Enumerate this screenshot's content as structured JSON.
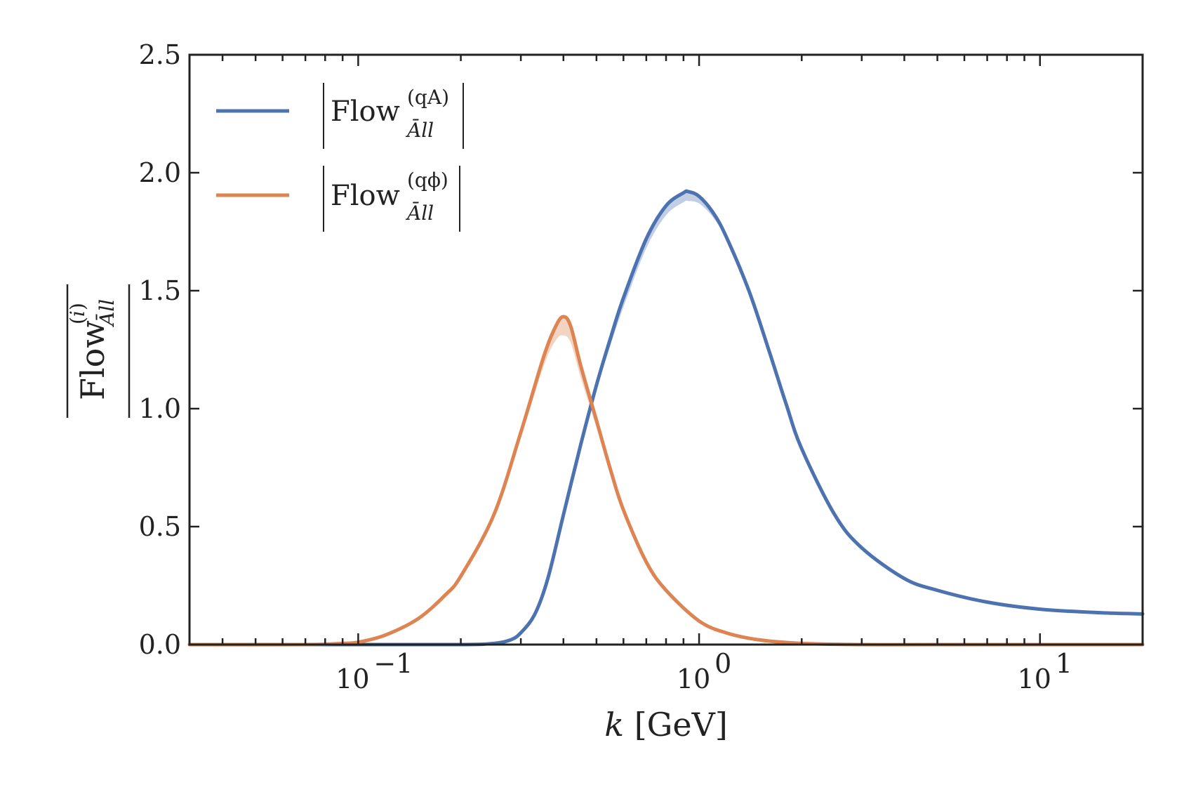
{
  "chart_data": {
    "type": "line",
    "title": "",
    "xlabel": "k [GeV]",
    "ylabel": "|Flow_{Āll}^{(i)}|",
    "xscale": "log",
    "xlim": [
      0.032,
      20
    ],
    "ylim": [
      0,
      2.5
    ],
    "yticks": [
      "0.0",
      "0.5",
      "1.0",
      "1.5",
      "2.0",
      "2.5"
    ],
    "xticks": [
      {
        "value": 0.1,
        "base": "10",
        "exp": "−1"
      },
      {
        "value": 1,
        "base": "10",
        "exp": "0"
      },
      {
        "value": 10,
        "base": "10",
        "exp": "1"
      }
    ],
    "legend_position": "top-left",
    "series": [
      {
        "name": "|Flow_{Āll}^{(qA)}|",
        "legend_main": "Flow",
        "legend_sup": "(qA)",
        "legend_sub": "Āll",
        "color": "#4c72b0",
        "band_color": "#4c72b0",
        "x": [
          0.032,
          0.1,
          0.2,
          0.25,
          0.28,
          0.3,
          0.33,
          0.36,
          0.4,
          0.45,
          0.5,
          0.55,
          0.6,
          0.7,
          0.8,
          0.9,
          0.93,
          1.0,
          1.1,
          1.2,
          1.4,
          1.6,
          1.8,
          2.0,
          2.5,
          3.0,
          4.0,
          5.0,
          7.0,
          10.0,
          15.0,
          20.0
        ],
        "y": [
          0.0,
          0.0,
          0.0,
          0.005,
          0.02,
          0.05,
          0.13,
          0.28,
          0.55,
          0.85,
          1.1,
          1.3,
          1.47,
          1.72,
          1.86,
          1.915,
          1.92,
          1.9,
          1.83,
          1.73,
          1.5,
          1.25,
          1.02,
          0.83,
          0.55,
          0.41,
          0.28,
          0.23,
          0.18,
          0.15,
          0.135,
          0.13
        ],
        "band_lower": [
          0.0,
          0.0,
          0.0,
          0.005,
          0.02,
          0.05,
          0.13,
          0.27,
          0.53,
          0.83,
          1.08,
          1.27,
          1.43,
          1.68,
          1.82,
          1.875,
          1.88,
          1.87,
          1.81,
          1.72,
          1.5,
          1.25,
          1.02,
          0.83,
          0.55,
          0.41,
          0.28,
          0.23,
          0.18,
          0.15,
          0.135,
          0.13
        ]
      },
      {
        "name": "|Flow_{Āll}^{(qϕ)}|",
        "legend_main": "Flow",
        "legend_sup": "(qϕ)",
        "legend_sub": "Āll",
        "color": "#dd8452",
        "band_color": "#dd8452",
        "x": [
          0.032,
          0.07,
          0.09,
          0.1,
          0.12,
          0.15,
          0.18,
          0.2,
          0.25,
          0.3,
          0.35,
          0.38,
          0.4,
          0.42,
          0.45,
          0.5,
          0.55,
          0.6,
          0.7,
          0.8,
          1.0,
          1.2,
          1.5,
          2.0,
          3.0,
          5.0,
          20.0
        ],
        "y": [
          0.0,
          0.0,
          0.005,
          0.01,
          0.04,
          0.11,
          0.21,
          0.29,
          0.55,
          0.9,
          1.22,
          1.35,
          1.39,
          1.35,
          1.18,
          0.95,
          0.74,
          0.57,
          0.35,
          0.23,
          0.1,
          0.05,
          0.02,
          0.005,
          0.0,
          0.0,
          0.0
        ],
        "band_lower": [
          0.0,
          0.0,
          0.005,
          0.01,
          0.04,
          0.11,
          0.21,
          0.29,
          0.55,
          0.88,
          1.18,
          1.29,
          1.31,
          1.28,
          1.13,
          0.92,
          0.72,
          0.56,
          0.35,
          0.23,
          0.1,
          0.05,
          0.02,
          0.005,
          0.0,
          0.0,
          0.0
        ]
      }
    ]
  }
}
